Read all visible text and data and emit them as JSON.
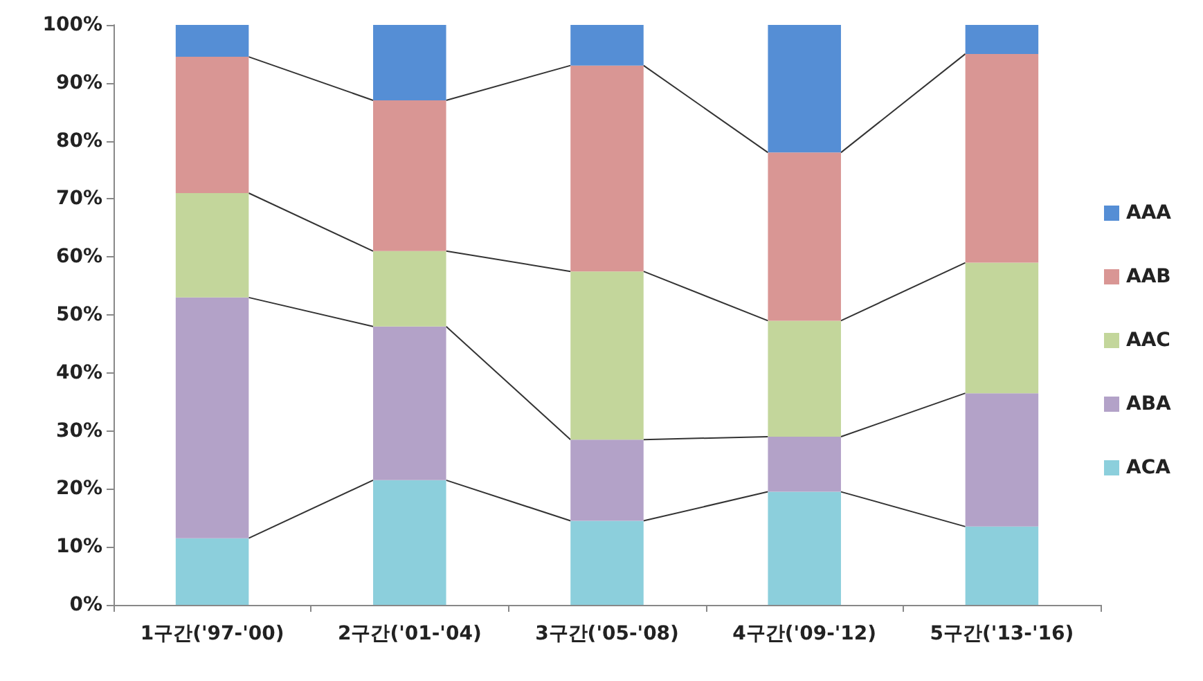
{
  "chart_data": {
    "type": "bar",
    "stacked": true,
    "categories": [
      "1구간('97-'00)",
      "2구간('01-'04)",
      "3구간('05-'08)",
      "4구간('09-'12)",
      "5구간('13-'16)"
    ],
    "series": [
      {
        "name": "ACA",
        "color": "#8ccfdc",
        "values": [
          11.5,
          21.5,
          14.5,
          19.5,
          13.5
        ]
      },
      {
        "name": "ABA",
        "color": "#b3a2c8",
        "values": [
          41.5,
          26.5,
          14,
          9.5,
          23
        ]
      },
      {
        "name": "AAC",
        "color": "#c3d69b",
        "values": [
          18,
          13,
          29,
          20,
          22.5
        ]
      },
      {
        "name": "AAB",
        "color": "#d99694",
        "values": [
          23.5,
          26,
          35.5,
          29,
          36
        ]
      },
      {
        "name": "AAA",
        "color": "#558ed5",
        "values": [
          5.5,
          13,
          7,
          22,
          5
        ]
      }
    ],
    "ylim": [
      0,
      100
    ],
    "yticks": [
      {
        "value": 0,
        "label": "0%"
      },
      {
        "value": 10,
        "label": "10%"
      },
      {
        "value": 20,
        "label": "20%"
      },
      {
        "value": 30,
        "label": "30%"
      },
      {
        "value": 40,
        "label": "40%"
      },
      {
        "value": 50,
        "label": "50%"
      },
      {
        "value": 60,
        "label": "60%"
      },
      {
        "value": 70,
        "label": "70%"
      },
      {
        "value": 80,
        "label": "80%"
      },
      {
        "value": 90,
        "label": "90%"
      },
      {
        "value": 100,
        "label": "100%"
      }
    ],
    "grid": false,
    "legend": "right"
  }
}
